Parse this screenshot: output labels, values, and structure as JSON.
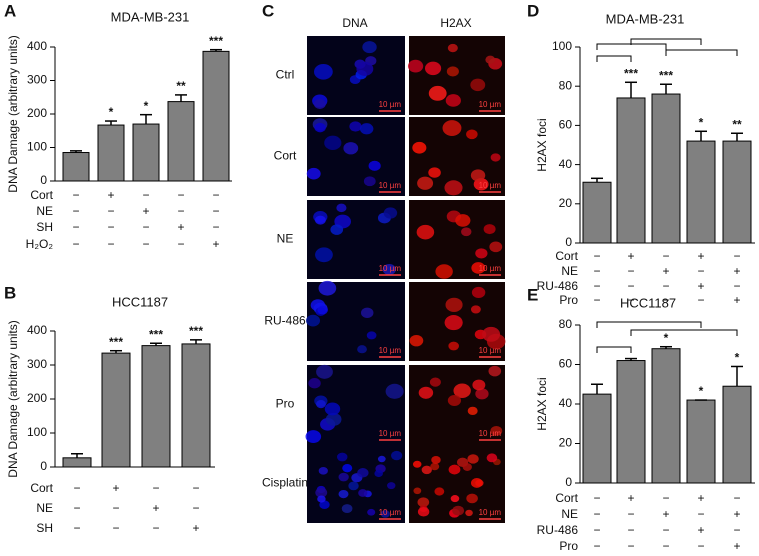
{
  "chart_data": [
    {
      "type": "bar",
      "panel": "A",
      "title": "MDA-MB-231",
      "ylabel": "DNA Damage (arbitrary units)",
      "color": "#808080",
      "values": [
        85,
        167,
        170,
        237,
        387
      ],
      "errors": [
        5,
        12,
        28,
        20,
        5
      ],
      "significance": [
        null,
        "*",
        "*",
        "**",
        "***"
      ],
      "ylim": [
        0,
        400
      ],
      "yticks": [
        0,
        100,
        200,
        300,
        400
      ],
      "treatments": [
        {
          "name": "Cort",
          "signs": [
            "−",
            "+",
            "−",
            "−",
            "−"
          ]
        },
        {
          "name": "NE",
          "signs": [
            "−",
            "−",
            "+",
            "−",
            "−"
          ]
        },
        {
          "name": "SH",
          "signs": [
            "−",
            "−",
            "−",
            "+",
            "−"
          ]
        },
        {
          "name": "H₂O₂",
          "signs": [
            "−",
            "−",
            "−",
            "−",
            "+"
          ]
        }
      ]
    },
    {
      "type": "bar",
      "panel": "B",
      "title": "HCC1187",
      "ylabel": "DNA Damage (arbitrary units)",
      "color": "#808080",
      "values": [
        27,
        335,
        357,
        362
      ],
      "errors": [
        12,
        7,
        7,
        12
      ],
      "significance": [
        null,
        "***",
        "***",
        "***"
      ],
      "ylim": [
        0,
        400
      ],
      "yticks": [
        0,
        100,
        200,
        300,
        400
      ],
      "treatments": [
        {
          "name": "Cort",
          "signs": [
            "−",
            "+",
            "−",
            "−"
          ]
        },
        {
          "name": "NE",
          "signs": [
            "−",
            "−",
            "+",
            "−"
          ]
        },
        {
          "name": "SH",
          "signs": [
            "−",
            "−",
            "−",
            "+"
          ]
        }
      ]
    },
    {
      "type": "bar",
      "panel": "D",
      "title": "MDA-MB-231",
      "ylabel": "H2AX foci",
      "color": "#808080",
      "values": [
        31,
        74,
        76,
        52,
        52
      ],
      "errors": [
        2,
        8,
        5,
        5,
        4
      ],
      "significance": [
        null,
        "***",
        "***",
        "*",
        "**"
      ],
      "ylim": [
        0,
        100
      ],
      "yticks": [
        0,
        20,
        40,
        60,
        80,
        100
      ],
      "treatments": [
        {
          "name": "Cort",
          "signs": [
            "−",
            "+",
            "−",
            "+",
            "−"
          ]
        },
        {
          "name": "NE",
          "signs": [
            "−",
            "−",
            "+",
            "−",
            "+"
          ]
        },
        {
          "name": "RU-486",
          "signs": [
            "−",
            "−",
            "−",
            "+",
            "−"
          ]
        },
        {
          "name": "Pro",
          "signs": [
            "−",
            "−",
            "−",
            "−",
            "+"
          ]
        }
      ]
    },
    {
      "type": "bar",
      "panel": "E",
      "title": "HCC1187",
      "ylabel": "H2AX foci",
      "color": "#808080",
      "values": [
        45,
        62,
        68,
        42,
        49
      ],
      "errors": [
        5,
        1,
        1,
        0,
        10
      ],
      "significance": [
        null,
        null,
        "*",
        "*",
        "*"
      ],
      "ylim": [
        0,
        80
      ],
      "yticks": [
        0,
        20,
        40,
        60,
        80
      ],
      "treatments": [
        {
          "name": "Cort",
          "signs": [
            "−",
            "+",
            "−",
            "+",
            "−"
          ]
        },
        {
          "name": "NE",
          "signs": [
            "−",
            "−",
            "+",
            "−",
            "+"
          ]
        },
        {
          "name": "RU-486",
          "signs": [
            "−",
            "−",
            "−",
            "+",
            "−"
          ]
        },
        {
          "name": "Pro",
          "signs": [
            "−",
            "−",
            "−",
            "−",
            "+"
          ]
        }
      ]
    }
  ],
  "panel_c": {
    "panel": "C",
    "columns": [
      "DNA",
      "H2AX"
    ],
    "rows": [
      "Ctrl",
      "Cort",
      "NE",
      "RU-486",
      "Pro",
      "Cisplatin"
    ],
    "scale_bar": "10 µm"
  }
}
